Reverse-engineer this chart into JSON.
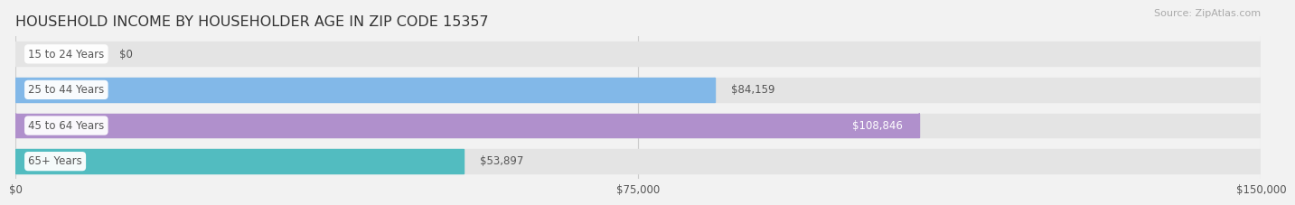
{
  "title": "HOUSEHOLD INCOME BY HOUSEHOLDER AGE IN ZIP CODE 15357",
  "source": "Source: ZipAtlas.com",
  "categories": [
    "15 to 24 Years",
    "25 to 44 Years",
    "45 to 64 Years",
    "65+ Years"
  ],
  "values": [
    0,
    84159,
    108846,
    53897
  ],
  "bar_colors": [
    "#f0a0aa",
    "#82b8e8",
    "#b090cc",
    "#52bcc0"
  ],
  "label_colors": [
    "#555555",
    "#555555",
    "#ffffff",
    "#555555"
  ],
  "bar_height": 0.68,
  "xlim": [
    0,
    150000
  ],
  "xticks": [
    0,
    75000,
    150000
  ],
  "xtick_labels": [
    "$0",
    "$75,000",
    "$150,000"
  ],
  "bg_color": "#f2f2f2",
  "bar_bg_color": "#e4e4e4",
  "title_fontsize": 11.5,
  "source_fontsize": 8,
  "label_fontsize": 8.5,
  "value_fontsize": 8.5,
  "tick_fontsize": 8.5,
  "category_label_color": "#555555",
  "grid_color": "#cccccc"
}
